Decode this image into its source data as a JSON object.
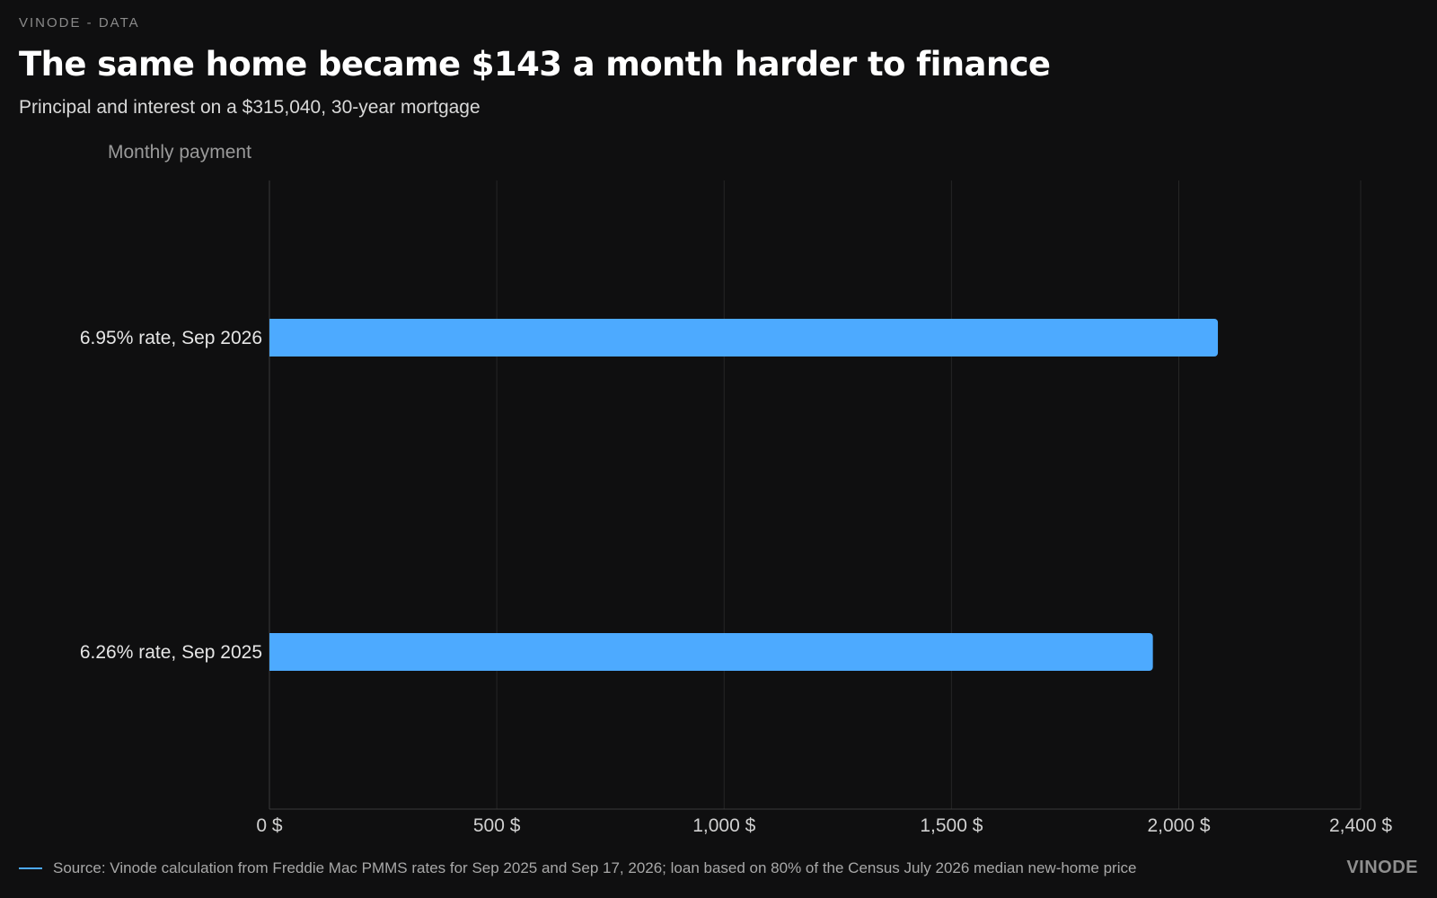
{
  "header": {
    "eyebrow": "VINODE - DATA",
    "title": "The same home became $143 a month harder to finance",
    "subtitle": "Principal and interest on a $315,040, 30-year mortgage"
  },
  "footer": {
    "source": "Source: Vinode calculation from Freddie Mac PMMS rates for Sep 2025 and Sep 17, 2026; loan based on 80% of the Census July 2026 median new-home price",
    "brand": "VINODE"
  },
  "chart_data": {
    "type": "bar",
    "orientation": "horizontal",
    "title": "The same home became $143 a month harder to finance",
    "subtitle": "Principal and interest on a $315,040, 30-year mortgage",
    "xlabel": "",
    "ylabel": "Monthly payment",
    "categories": [
      "6.95% rate, Sep 2026",
      "6.26% rate, Sep 2025"
    ],
    "values": [
      2086,
      1943
    ],
    "xlim": [
      0,
      2400
    ],
    "xticks": [
      0,
      500,
      1000,
      1500,
      2000,
      2400
    ],
    "xtick_labels": [
      "0 $",
      "500 $",
      "1,000 $",
      "1,500 $",
      "2,000 $",
      "2,400 $"
    ],
    "grid": true,
    "legend": "bottom-left",
    "bar_color": "#4daaff"
  }
}
